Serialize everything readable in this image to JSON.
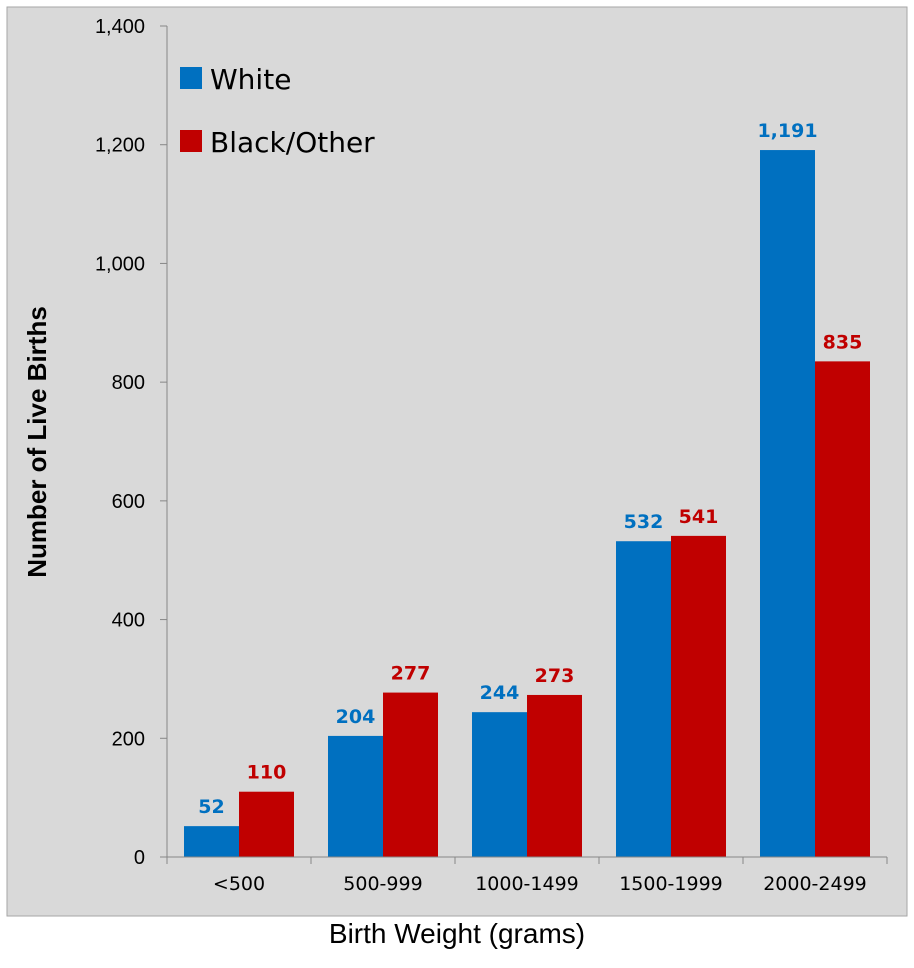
{
  "chart_data": {
    "type": "bar",
    "title": "",
    "xlabel": "Birth Weight (grams)",
    "ylabel": "Number of Live Births",
    "categories": [
      "<500",
      "500-999",
      "1000-1499",
      "1500-1999",
      "2000-2499"
    ],
    "series": [
      {
        "name": "White",
        "color": "#0070C0",
        "values": [
          52,
          204,
          244,
          532,
          1191
        ],
        "labels": [
          "52",
          "204",
          "244",
          "532",
          "1,191"
        ]
      },
      {
        "name": "Black/Other",
        "color": "#C00000",
        "values": [
          110,
          277,
          273,
          541,
          835
        ],
        "labels": [
          "110",
          "277",
          "273",
          "541",
          "835"
        ]
      }
    ],
    "ylim": [
      0,
      1400
    ],
    "yticks": [
      0,
      200,
      400,
      600,
      800,
      1000,
      1200,
      1400
    ],
    "ytick_labels": [
      "0",
      "200",
      "400",
      "600",
      "800",
      "1,000",
      "1,200",
      "1,400"
    ],
    "grid": false,
    "legend_position": "top-left",
    "plot_background": "#D9D9D9"
  }
}
